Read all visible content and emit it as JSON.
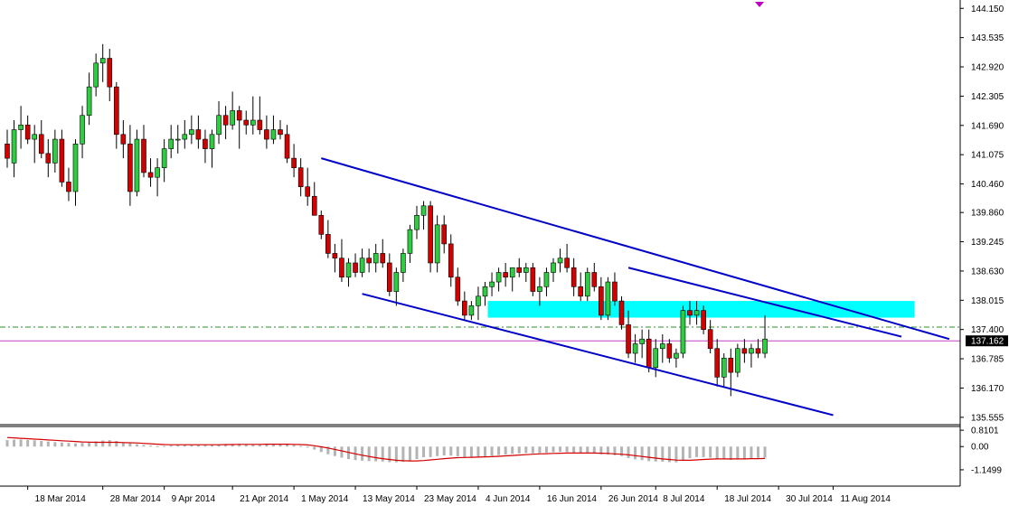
{
  "chart_data": {
    "type": "candlestick",
    "subtype": "price chart with MACD indicator panel",
    "colors": {
      "bull": "#2ecc40",
      "bear": "#d40000",
      "channel": "#0000c8",
      "zone": "#00ffff",
      "current_price_line": "#c040c0",
      "dashed_level": "#2e8b2e",
      "macd_hist": "#b4b4b4",
      "macd_signal": "#d40000",
      "axis": "#000000",
      "marker": "#c000c0"
    },
    "price_axis": {
      "ylim": [
        135.4,
        144.25
      ],
      "ticks": [
        "144.150",
        "143.535",
        "142.920",
        "142.305",
        "141.690",
        "141.075",
        "140.460",
        "139.860",
        "139.245",
        "138.630",
        "138.015",
        "137.400",
        "136.785",
        "136.170",
        "135.555"
      ],
      "current_price_label": "137.162",
      "current_price": 137.162,
      "dashed_level": 137.45
    },
    "indicator_axis": {
      "ylim": [
        -1.6,
        0.95
      ],
      "ticks": [
        "0.8101",
        "0.00",
        "-1.1499"
      ]
    },
    "x_axis_labels": [
      "18 Mar 2014",
      "28 Mar 2014",
      "9 Apr 2014",
      "21 Apr 2014",
      "1 May 2014",
      "13 May 2014",
      "23 May 2014",
      "4 Jun 2014",
      "16 Jun 2014",
      "26 Jun 2014",
      "8 Jul 2014",
      "18 Jul 2014",
      "30 Jul 2014",
      "11 Aug 2014"
    ],
    "label_bar_index": [
      3,
      14,
      23,
      33,
      42,
      51,
      60,
      69,
      78,
      87,
      95,
      104,
      113,
      121
    ],
    "candles": [
      {
        "o": 141.3,
        "h": 141.6,
        "l": 140.8,
        "c": 141.0
      },
      {
        "o": 140.9,
        "h": 141.8,
        "l": 140.6,
        "c": 141.6
      },
      {
        "o": 141.6,
        "h": 142.1,
        "l": 141.2,
        "c": 141.7
      },
      {
        "o": 141.7,
        "h": 141.9,
        "l": 141.3,
        "c": 141.4
      },
      {
        "o": 141.4,
        "h": 141.7,
        "l": 140.9,
        "c": 141.5
      },
      {
        "o": 141.5,
        "h": 141.8,
        "l": 141.0,
        "c": 141.1
      },
      {
        "o": 141.1,
        "h": 141.4,
        "l": 140.6,
        "c": 140.9
      },
      {
        "o": 140.9,
        "h": 141.6,
        "l": 140.7,
        "c": 141.4
      },
      {
        "o": 141.4,
        "h": 141.6,
        "l": 140.4,
        "c": 140.5
      },
      {
        "o": 140.5,
        "h": 140.8,
        "l": 140.1,
        "c": 140.3
      },
      {
        "o": 140.3,
        "h": 141.4,
        "l": 140.0,
        "c": 141.3
      },
      {
        "o": 141.3,
        "h": 142.1,
        "l": 141.0,
        "c": 141.9
      },
      {
        "o": 141.9,
        "h": 142.8,
        "l": 141.7,
        "c": 142.5
      },
      {
        "o": 142.5,
        "h": 143.2,
        "l": 142.3,
        "c": 143.0
      },
      {
        "o": 143.0,
        "h": 143.4,
        "l": 142.6,
        "c": 143.1
      },
      {
        "o": 143.1,
        "h": 143.3,
        "l": 142.2,
        "c": 142.5
      },
      {
        "o": 142.5,
        "h": 142.6,
        "l": 141.2,
        "c": 141.5
      },
      {
        "o": 141.5,
        "h": 141.8,
        "l": 141.0,
        "c": 141.3
      },
      {
        "o": 141.3,
        "h": 141.7,
        "l": 140.0,
        "c": 140.3
      },
      {
        "o": 140.3,
        "h": 141.6,
        "l": 140.2,
        "c": 141.4
      },
      {
        "o": 141.4,
        "h": 141.7,
        "l": 140.6,
        "c": 140.7
      },
      {
        "o": 140.7,
        "h": 141.0,
        "l": 140.4,
        "c": 140.6
      },
      {
        "o": 140.6,
        "h": 141.0,
        "l": 140.2,
        "c": 140.8
      },
      {
        "o": 140.8,
        "h": 141.4,
        "l": 140.5,
        "c": 141.2
      },
      {
        "o": 141.2,
        "h": 141.7,
        "l": 141.0,
        "c": 141.4
      },
      {
        "o": 141.4,
        "h": 141.7,
        "l": 141.1,
        "c": 141.4
      },
      {
        "o": 141.4,
        "h": 141.8,
        "l": 141.2,
        "c": 141.5
      },
      {
        "o": 141.5,
        "h": 141.9,
        "l": 141.3,
        "c": 141.6
      },
      {
        "o": 141.6,
        "h": 141.9,
        "l": 141.2,
        "c": 141.4
      },
      {
        "o": 141.4,
        "h": 141.6,
        "l": 140.9,
        "c": 141.2
      },
      {
        "o": 141.2,
        "h": 141.6,
        "l": 140.8,
        "c": 141.5
      },
      {
        "o": 141.5,
        "h": 142.2,
        "l": 141.3,
        "c": 141.9
      },
      {
        "o": 141.9,
        "h": 142.1,
        "l": 141.4,
        "c": 141.7
      },
      {
        "o": 141.7,
        "h": 142.4,
        "l": 141.6,
        "c": 142.0
      },
      {
        "o": 142.0,
        "h": 142.1,
        "l": 141.2,
        "c": 141.8
      },
      {
        "o": 141.8,
        "h": 142.0,
        "l": 141.5,
        "c": 141.7
      },
      {
        "o": 141.7,
        "h": 142.3,
        "l": 141.5,
        "c": 141.8
      },
      {
        "o": 141.8,
        "h": 142.3,
        "l": 141.5,
        "c": 141.6
      },
      {
        "o": 141.6,
        "h": 141.9,
        "l": 141.2,
        "c": 141.4
      },
      {
        "o": 141.4,
        "h": 141.9,
        "l": 141.3,
        "c": 141.6
      },
      {
        "o": 141.6,
        "h": 141.8,
        "l": 141.4,
        "c": 141.5
      },
      {
        "o": 141.5,
        "h": 141.7,
        "l": 140.9,
        "c": 141.0
      },
      {
        "o": 141.0,
        "h": 141.3,
        "l": 140.6,
        "c": 140.8
      },
      {
        "o": 140.8,
        "h": 141.0,
        "l": 140.2,
        "c": 140.4
      },
      {
        "o": 140.4,
        "h": 140.8,
        "l": 140.0,
        "c": 140.2
      },
      {
        "o": 140.2,
        "h": 140.5,
        "l": 139.8,
        "c": 139.8
      },
      {
        "o": 139.8,
        "h": 139.9,
        "l": 139.3,
        "c": 139.4
      },
      {
        "o": 139.4,
        "h": 139.7,
        "l": 138.9,
        "c": 139.0
      },
      {
        "o": 139.0,
        "h": 139.2,
        "l": 138.6,
        "c": 138.9
      },
      {
        "o": 138.9,
        "h": 139.3,
        "l": 138.4,
        "c": 138.5
      },
      {
        "o": 138.5,
        "h": 138.9,
        "l": 138.3,
        "c": 138.8
      },
      {
        "o": 138.8,
        "h": 139.0,
        "l": 138.5,
        "c": 138.6
      },
      {
        "o": 138.6,
        "h": 139.1,
        "l": 138.5,
        "c": 138.9
      },
      {
        "o": 138.9,
        "h": 139.1,
        "l": 138.6,
        "c": 138.8
      },
      {
        "o": 138.8,
        "h": 139.2,
        "l": 138.6,
        "c": 139.0
      },
      {
        "o": 139.0,
        "h": 139.3,
        "l": 138.7,
        "c": 138.8
      },
      {
        "o": 138.8,
        "h": 139.0,
        "l": 138.1,
        "c": 138.2
      },
      {
        "o": 138.2,
        "h": 138.7,
        "l": 137.9,
        "c": 138.6
      },
      {
        "o": 138.6,
        "h": 139.1,
        "l": 138.4,
        "c": 139.0
      },
      {
        "o": 139.0,
        "h": 139.6,
        "l": 138.8,
        "c": 139.5
      },
      {
        "o": 139.5,
        "h": 140.0,
        "l": 139.3,
        "c": 139.8
      },
      {
        "o": 139.8,
        "h": 140.1,
        "l": 139.5,
        "c": 140.0
      },
      {
        "o": 140.0,
        "h": 140.1,
        "l": 138.6,
        "c": 138.8
      },
      {
        "o": 138.8,
        "h": 139.8,
        "l": 138.6,
        "c": 139.6
      },
      {
        "o": 139.6,
        "h": 139.8,
        "l": 139.0,
        "c": 139.2
      },
      {
        "o": 139.2,
        "h": 139.4,
        "l": 138.3,
        "c": 138.5
      },
      {
        "o": 138.5,
        "h": 138.7,
        "l": 137.9,
        "c": 138.0
      },
      {
        "o": 138.0,
        "h": 138.2,
        "l": 137.6,
        "c": 137.7
      },
      {
        "o": 137.7,
        "h": 138.0,
        "l": 137.6,
        "c": 137.9
      },
      {
        "o": 137.9,
        "h": 138.3,
        "l": 137.6,
        "c": 138.1
      },
      {
        "o": 138.1,
        "h": 138.4,
        "l": 137.9,
        "c": 138.3
      },
      {
        "o": 138.3,
        "h": 138.6,
        "l": 138.1,
        "c": 138.4
      },
      {
        "o": 138.4,
        "h": 138.7,
        "l": 138.2,
        "c": 138.6
      },
      {
        "o": 138.6,
        "h": 138.8,
        "l": 138.3,
        "c": 138.5
      },
      {
        "o": 138.5,
        "h": 138.7,
        "l": 138.2,
        "c": 138.7
      },
      {
        "o": 138.7,
        "h": 138.9,
        "l": 138.5,
        "c": 138.6
      },
      {
        "o": 138.6,
        "h": 138.8,
        "l": 138.4,
        "c": 138.7
      },
      {
        "o": 138.7,
        "h": 138.8,
        "l": 138.1,
        "c": 138.2
      },
      {
        "o": 138.2,
        "h": 138.5,
        "l": 137.9,
        "c": 138.3
      },
      {
        "o": 138.3,
        "h": 138.7,
        "l": 138.1,
        "c": 138.6
      },
      {
        "o": 138.6,
        "h": 138.9,
        "l": 138.4,
        "c": 138.8
      },
      {
        "o": 138.8,
        "h": 139.1,
        "l": 138.6,
        "c": 138.9
      },
      {
        "o": 138.9,
        "h": 139.2,
        "l": 138.6,
        "c": 138.7
      },
      {
        "o": 138.7,
        "h": 138.9,
        "l": 138.1,
        "c": 138.3
      },
      {
        "o": 138.3,
        "h": 138.6,
        "l": 138.0,
        "c": 138.1
      },
      {
        "o": 138.1,
        "h": 138.7,
        "l": 138.0,
        "c": 138.6
      },
      {
        "o": 138.6,
        "h": 138.8,
        "l": 138.2,
        "c": 138.3
      },
      {
        "o": 138.3,
        "h": 138.5,
        "l": 137.6,
        "c": 137.7
      },
      {
        "o": 137.7,
        "h": 138.5,
        "l": 137.6,
        "c": 138.4
      },
      {
        "o": 138.4,
        "h": 138.6,
        "l": 137.9,
        "c": 138.0
      },
      {
        "o": 138.0,
        "h": 138.1,
        "l": 137.4,
        "c": 137.5
      },
      {
        "o": 137.5,
        "h": 137.8,
        "l": 136.8,
        "c": 136.9
      },
      {
        "o": 136.9,
        "h": 137.3,
        "l": 136.7,
        "c": 137.1
      },
      {
        "o": 137.1,
        "h": 137.4,
        "l": 136.8,
        "c": 137.2
      },
      {
        "o": 137.2,
        "h": 137.4,
        "l": 136.5,
        "c": 136.6
      },
      {
        "o": 136.6,
        "h": 137.2,
        "l": 136.4,
        "c": 137.0
      },
      {
        "o": 137.0,
        "h": 137.3,
        "l": 136.7,
        "c": 137.1
      },
      {
        "o": 137.1,
        "h": 137.2,
        "l": 136.7,
        "c": 136.8
      },
      {
        "o": 136.8,
        "h": 137.0,
        "l": 136.6,
        "c": 136.9
      },
      {
        "o": 136.9,
        "h": 137.9,
        "l": 136.8,
        "c": 137.8
      },
      {
        "o": 137.8,
        "h": 138.0,
        "l": 137.5,
        "c": 137.7
      },
      {
        "o": 137.7,
        "h": 138.0,
        "l": 137.5,
        "c": 137.8
      },
      {
        "o": 137.8,
        "h": 137.9,
        "l": 137.3,
        "c": 137.4
      },
      {
        "o": 137.4,
        "h": 137.6,
        "l": 136.9,
        "c": 137.0
      },
      {
        "o": 137.0,
        "h": 137.2,
        "l": 136.2,
        "c": 136.4
      },
      {
        "o": 136.4,
        "h": 136.9,
        "l": 136.2,
        "c": 136.8
      },
      {
        "o": 136.8,
        "h": 137.0,
        "l": 136.0,
        "c": 136.5
      },
      {
        "o": 136.5,
        "h": 137.1,
        "l": 136.4,
        "c": 137.0
      },
      {
        "o": 137.0,
        "h": 137.2,
        "l": 136.7,
        "c": 136.9
      },
      {
        "o": 136.9,
        "h": 137.1,
        "l": 136.6,
        "c": 137.0
      },
      {
        "o": 137.0,
        "h": 137.2,
        "l": 136.8,
        "c": 136.9
      },
      {
        "o": 136.9,
        "h": 137.7,
        "l": 136.8,
        "c": 137.2
      }
    ],
    "macd_histogram": [
      0.32,
      0.34,
      0.35,
      0.33,
      0.31,
      0.28,
      0.25,
      0.22,
      0.2,
      0.18,
      0.16,
      0.18,
      0.21,
      0.26,
      0.3,
      0.32,
      0.28,
      0.22,
      0.16,
      0.12,
      0.08,
      0.05,
      0.02,
      0.03,
      0.06,
      0.08,
      0.1,
      0.11,
      0.1,
      0.09,
      0.09,
      0.11,
      0.12,
      0.13,
      0.14,
      0.13,
      0.12,
      0.12,
      0.13,
      0.14,
      0.14,
      0.12,
      0.08,
      0.03,
      -0.05,
      -0.15,
      -0.27,
      -0.38,
      -0.47,
      -0.55,
      -0.62,
      -0.67,
      -0.7,
      -0.72,
      -0.73,
      -0.74,
      -0.77,
      -0.78,
      -0.76,
      -0.7,
      -0.62,
      -0.53,
      -0.52,
      -0.47,
      -0.44,
      -0.45,
      -0.48,
      -0.52,
      -0.54,
      -0.53,
      -0.5,
      -0.46,
      -0.42,
      -0.39,
      -0.36,
      -0.34,
      -0.32,
      -0.33,
      -0.32,
      -0.3,
      -0.28,
      -0.26,
      -0.27,
      -0.3,
      -0.33,
      -0.32,
      -0.33,
      -0.38,
      -0.4,
      -0.43,
      -0.47,
      -0.57,
      -0.63,
      -0.67,
      -0.72,
      -0.74,
      -0.75,
      -0.77,
      -0.78,
      -0.66,
      -0.58,
      -0.52,
      -0.52,
      -0.55,
      -0.62,
      -0.63,
      -0.66,
      -0.64,
      -0.62,
      -0.58,
      -0.56,
      -0.55
    ],
    "macd_signal": [
      0.45,
      0.43,
      0.41,
      0.39,
      0.37,
      0.35,
      0.33,
      0.31,
      0.29,
      0.27,
      0.25,
      0.23,
      0.22,
      0.21,
      0.21,
      0.21,
      0.21,
      0.2,
      0.19,
      0.18,
      0.16,
      0.14,
      0.12,
      0.1,
      0.09,
      0.09,
      0.09,
      0.09,
      0.09,
      0.09,
      0.09,
      0.09,
      0.1,
      0.1,
      0.11,
      0.11,
      0.11,
      0.11,
      0.12,
      0.12,
      0.12,
      0.12,
      0.11,
      0.1,
      0.08,
      0.04,
      -0.01,
      -0.07,
      -0.14,
      -0.21,
      -0.29,
      -0.36,
      -0.43,
      -0.49,
      -0.55,
      -0.6,
      -0.64,
      -0.68,
      -0.7,
      -0.71,
      -0.71,
      -0.69,
      -0.66,
      -0.63,
      -0.6,
      -0.57,
      -0.55,
      -0.54,
      -0.53,
      -0.52,
      -0.51,
      -0.5,
      -0.48,
      -0.46,
      -0.44,
      -0.42,
      -0.4,
      -0.38,
      -0.36,
      -0.35,
      -0.34,
      -0.33,
      -0.32,
      -0.32,
      -0.32,
      -0.32,
      -0.32,
      -0.33,
      -0.34,
      -0.36,
      -0.38,
      -0.41,
      -0.45,
      -0.49,
      -0.53,
      -0.57,
      -0.61,
      -0.64,
      -0.67,
      -0.68,
      -0.68,
      -0.66,
      -0.64,
      -0.62,
      -0.61,
      -0.61,
      -0.61,
      -0.61,
      -0.61,
      -0.6,
      -0.6,
      -0.59
    ],
    "annotations": {
      "channel_upper": [
        {
          "bar": 46,
          "price": 141.0
        },
        {
          "bar": 138,
          "price": 137.2
        }
      ],
      "channel_lower": [
        {
          "bar": 52,
          "price": 138.15
        },
        {
          "bar": 121,
          "price": 135.6
        }
      ],
      "inner_channel_line": [
        {
          "bar": 91,
          "price": 138.7
        },
        {
          "bar": 131,
          "price": 137.25
        }
      ],
      "zone": {
        "bar_start": 70,
        "bar_end": 132,
        "price_top": 138.0,
        "price_bottom": 137.65
      }
    }
  }
}
